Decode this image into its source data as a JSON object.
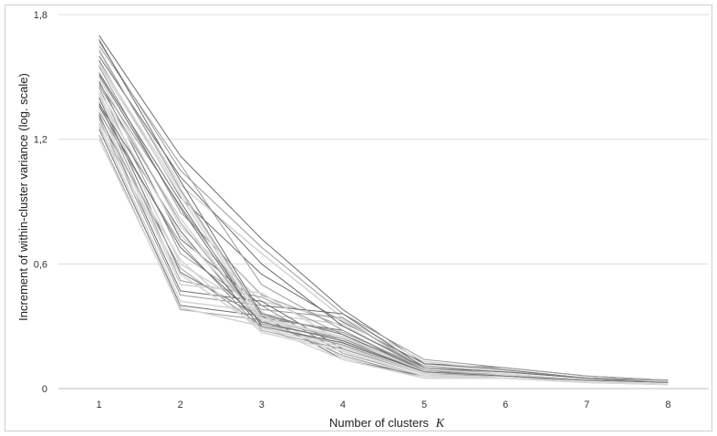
{
  "chart_data": {
    "type": "line",
    "title": "",
    "xlabel": "Number of clusters",
    "xlabel_symbol": "K",
    "ylabel": "Increment of within-cluster variance (log. scale)",
    "x": [
      1,
      2,
      3,
      4,
      5,
      6,
      7,
      8
    ],
    "x_tick_labels": [
      "1",
      "2",
      "3",
      "4",
      "5",
      "6",
      "7",
      "8"
    ],
    "y_ticks": [
      0,
      0.6,
      1.2,
      1.8
    ],
    "y_tick_labels": [
      "0",
      "0,6",
      "1,2",
      "1,8"
    ],
    "ylim": [
      0,
      1.8
    ],
    "grid": true,
    "legend": "none",
    "colors": {
      "dark_lines": "#6e6e6e",
      "mid_lines": "#9a9a9a",
      "light_lines": "#d6d6d6",
      "grid": "#dcdcdc"
    },
    "series": [
      {
        "values": [
          1.7,
          1.12,
          0.72,
          0.38,
          0.12,
          0.1,
          0.06,
          0.04
        ]
      },
      {
        "values": [
          1.67,
          1.05,
          0.68,
          0.36,
          0.14,
          0.1,
          0.06,
          0.04
        ]
      },
      {
        "values": [
          1.62,
          0.98,
          0.65,
          0.34,
          0.13,
          0.09,
          0.05,
          0.04
        ]
      },
      {
        "values": [
          1.58,
          0.92,
          0.55,
          0.32,
          0.12,
          0.09,
          0.05,
          0.04
        ]
      },
      {
        "values": [
          1.55,
          0.85,
          0.45,
          0.3,
          0.11,
          0.08,
          0.05,
          0.04
        ]
      },
      {
        "values": [
          1.5,
          0.78,
          0.42,
          0.33,
          0.1,
          0.08,
          0.05,
          0.03
        ]
      },
      {
        "values": [
          1.48,
          0.72,
          0.4,
          0.36,
          0.1,
          0.08,
          0.05,
          0.03
        ]
      },
      {
        "values": [
          1.45,
          0.65,
          0.38,
          0.34,
          0.09,
          0.07,
          0.04,
          0.03
        ]
      },
      {
        "values": [
          1.42,
          0.6,
          0.36,
          0.31,
          0.09,
          0.07,
          0.04,
          0.03
        ]
      },
      {
        "values": [
          1.4,
          0.56,
          0.34,
          0.28,
          0.08,
          0.07,
          0.04,
          0.03
        ]
      },
      {
        "values": [
          1.38,
          0.52,
          0.44,
          0.26,
          0.08,
          0.06,
          0.04,
          0.03
        ]
      },
      {
        "values": [
          1.35,
          0.5,
          0.46,
          0.22,
          0.07,
          0.06,
          0.04,
          0.03
        ]
      },
      {
        "values": [
          1.32,
          0.47,
          0.42,
          0.19,
          0.07,
          0.06,
          0.04,
          0.03
        ]
      },
      {
        "values": [
          1.3,
          0.45,
          0.4,
          0.17,
          0.06,
          0.06,
          0.04,
          0.03
        ]
      },
      {
        "values": [
          1.27,
          0.42,
          0.37,
          0.15,
          0.06,
          0.05,
          0.03,
          0.02
        ]
      },
      {
        "values": [
          1.25,
          0.4,
          0.35,
          0.14,
          0.06,
          0.05,
          0.03,
          0.02
        ]
      },
      {
        "values": [
          1.22,
          0.38,
          0.33,
          0.16,
          0.05,
          0.05,
          0.03,
          0.02
        ]
      },
      {
        "values": [
          1.2,
          0.39,
          0.3,
          0.14,
          0.05,
          0.05,
          0.03,
          0.02
        ]
      },
      {
        "values": [
          1.6,
          1.02,
          0.6,
          0.3,
          0.1,
          0.08,
          0.05,
          0.03
        ]
      },
      {
        "values": [
          1.65,
          1.08,
          0.5,
          0.28,
          0.09,
          0.07,
          0.04,
          0.03
        ]
      },
      {
        "values": [
          1.57,
          0.95,
          0.34,
          0.25,
          0.09,
          0.07,
          0.04,
          0.03
        ]
      },
      {
        "values": [
          1.52,
          0.9,
          0.3,
          0.22,
          0.08,
          0.07,
          0.04,
          0.03
        ]
      },
      {
        "values": [
          1.47,
          0.88,
          0.33,
          0.24,
          0.08,
          0.06,
          0.04,
          0.03
        ]
      },
      {
        "values": [
          1.43,
          0.82,
          0.31,
          0.21,
          0.07,
          0.06,
          0.04,
          0.03
        ]
      },
      {
        "values": [
          1.37,
          0.76,
          0.29,
          0.2,
          0.07,
          0.06,
          0.04,
          0.03
        ]
      },
      {
        "values": [
          1.33,
          0.7,
          0.28,
          0.19,
          0.07,
          0.06,
          0.03,
          0.02
        ]
      },
      {
        "values": [
          1.28,
          0.62,
          0.27,
          0.18,
          0.06,
          0.05,
          0.03,
          0.02
        ]
      },
      {
        "values": [
          1.68,
          1.0,
          0.36,
          0.26,
          0.09,
          0.07,
          0.04,
          0.03
        ]
      },
      {
        "values": [
          1.63,
          0.96,
          0.35,
          0.27,
          0.1,
          0.07,
          0.04,
          0.03
        ]
      },
      {
        "values": [
          1.56,
          0.93,
          0.32,
          0.23,
          0.09,
          0.07,
          0.04,
          0.03
        ]
      },
      {
        "values": [
          1.51,
          0.87,
          0.3,
          0.22,
          0.08,
          0.06,
          0.04,
          0.03
        ]
      },
      {
        "values": [
          1.46,
          0.8,
          0.31,
          0.24,
          0.09,
          0.06,
          0.04,
          0.03
        ]
      },
      {
        "values": [
          1.41,
          0.74,
          0.33,
          0.25,
          0.08,
          0.06,
          0.04,
          0.03
        ]
      },
      {
        "values": [
          1.36,
          0.68,
          0.32,
          0.23,
          0.08,
          0.06,
          0.04,
          0.03
        ]
      },
      {
        "values": [
          1.31,
          0.58,
          0.3,
          0.21,
          0.07,
          0.05,
          0.03,
          0.02
        ]
      },
      {
        "values": [
          1.26,
          0.55,
          0.29,
          0.2,
          0.07,
          0.05,
          0.03,
          0.02
        ]
      }
    ]
  }
}
